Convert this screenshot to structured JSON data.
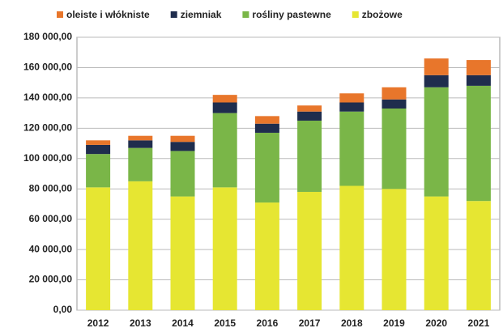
{
  "chart_data": {
    "type": "stacked_bar",
    "categories": [
      "2012",
      "2013",
      "2014",
      "2015",
      "2016",
      "2017",
      "2018",
      "2019",
      "2020",
      "2021"
    ],
    "series": [
      {
        "name": "oleiste i włókniste",
        "color": "#e8762b",
        "values": [
          3000,
          3000,
          4000,
          5000,
          5000,
          4000,
          6000,
          8000,
          11000,
          10000
        ]
      },
      {
        "name": "ziemniak",
        "color": "#1f2d4d",
        "values": [
          6000,
          5000,
          6000,
          7000,
          6000,
          6000,
          6000,
          6000,
          8000,
          7000
        ]
      },
      {
        "name": "rośliny pastewne",
        "color": "#7ab648",
        "values": [
          22000,
          22000,
          30000,
          49000,
          46000,
          47000,
          49000,
          53000,
          72000,
          76000
        ]
      },
      {
        "name": "zbożowe",
        "color": "#e6e632",
        "values": [
          81000,
          85000,
          75000,
          81000,
          71000,
          78000,
          82000,
          80000,
          75000,
          72000
        ]
      }
    ],
    "ylim": [
      0,
      180000
    ],
    "yticks": [
      {
        "value": 0,
        "label": "0,00"
      },
      {
        "value": 20000,
        "label": "20 000,00"
      },
      {
        "value": 40000,
        "label": "40 000,00"
      },
      {
        "value": 60000,
        "label": "60 000,00"
      },
      {
        "value": 80000,
        "label": "80 000,00"
      },
      {
        "value": 100000,
        "label": "100 000,00"
      },
      {
        "value": 120000,
        "label": "120 000,00"
      },
      {
        "value": 140000,
        "label": "140 000,00"
      },
      {
        "value": 160000,
        "label": "160 000,00"
      },
      {
        "value": 180000,
        "label": "180 000,00"
      }
    ],
    "grid": true,
    "legend": "top"
  }
}
